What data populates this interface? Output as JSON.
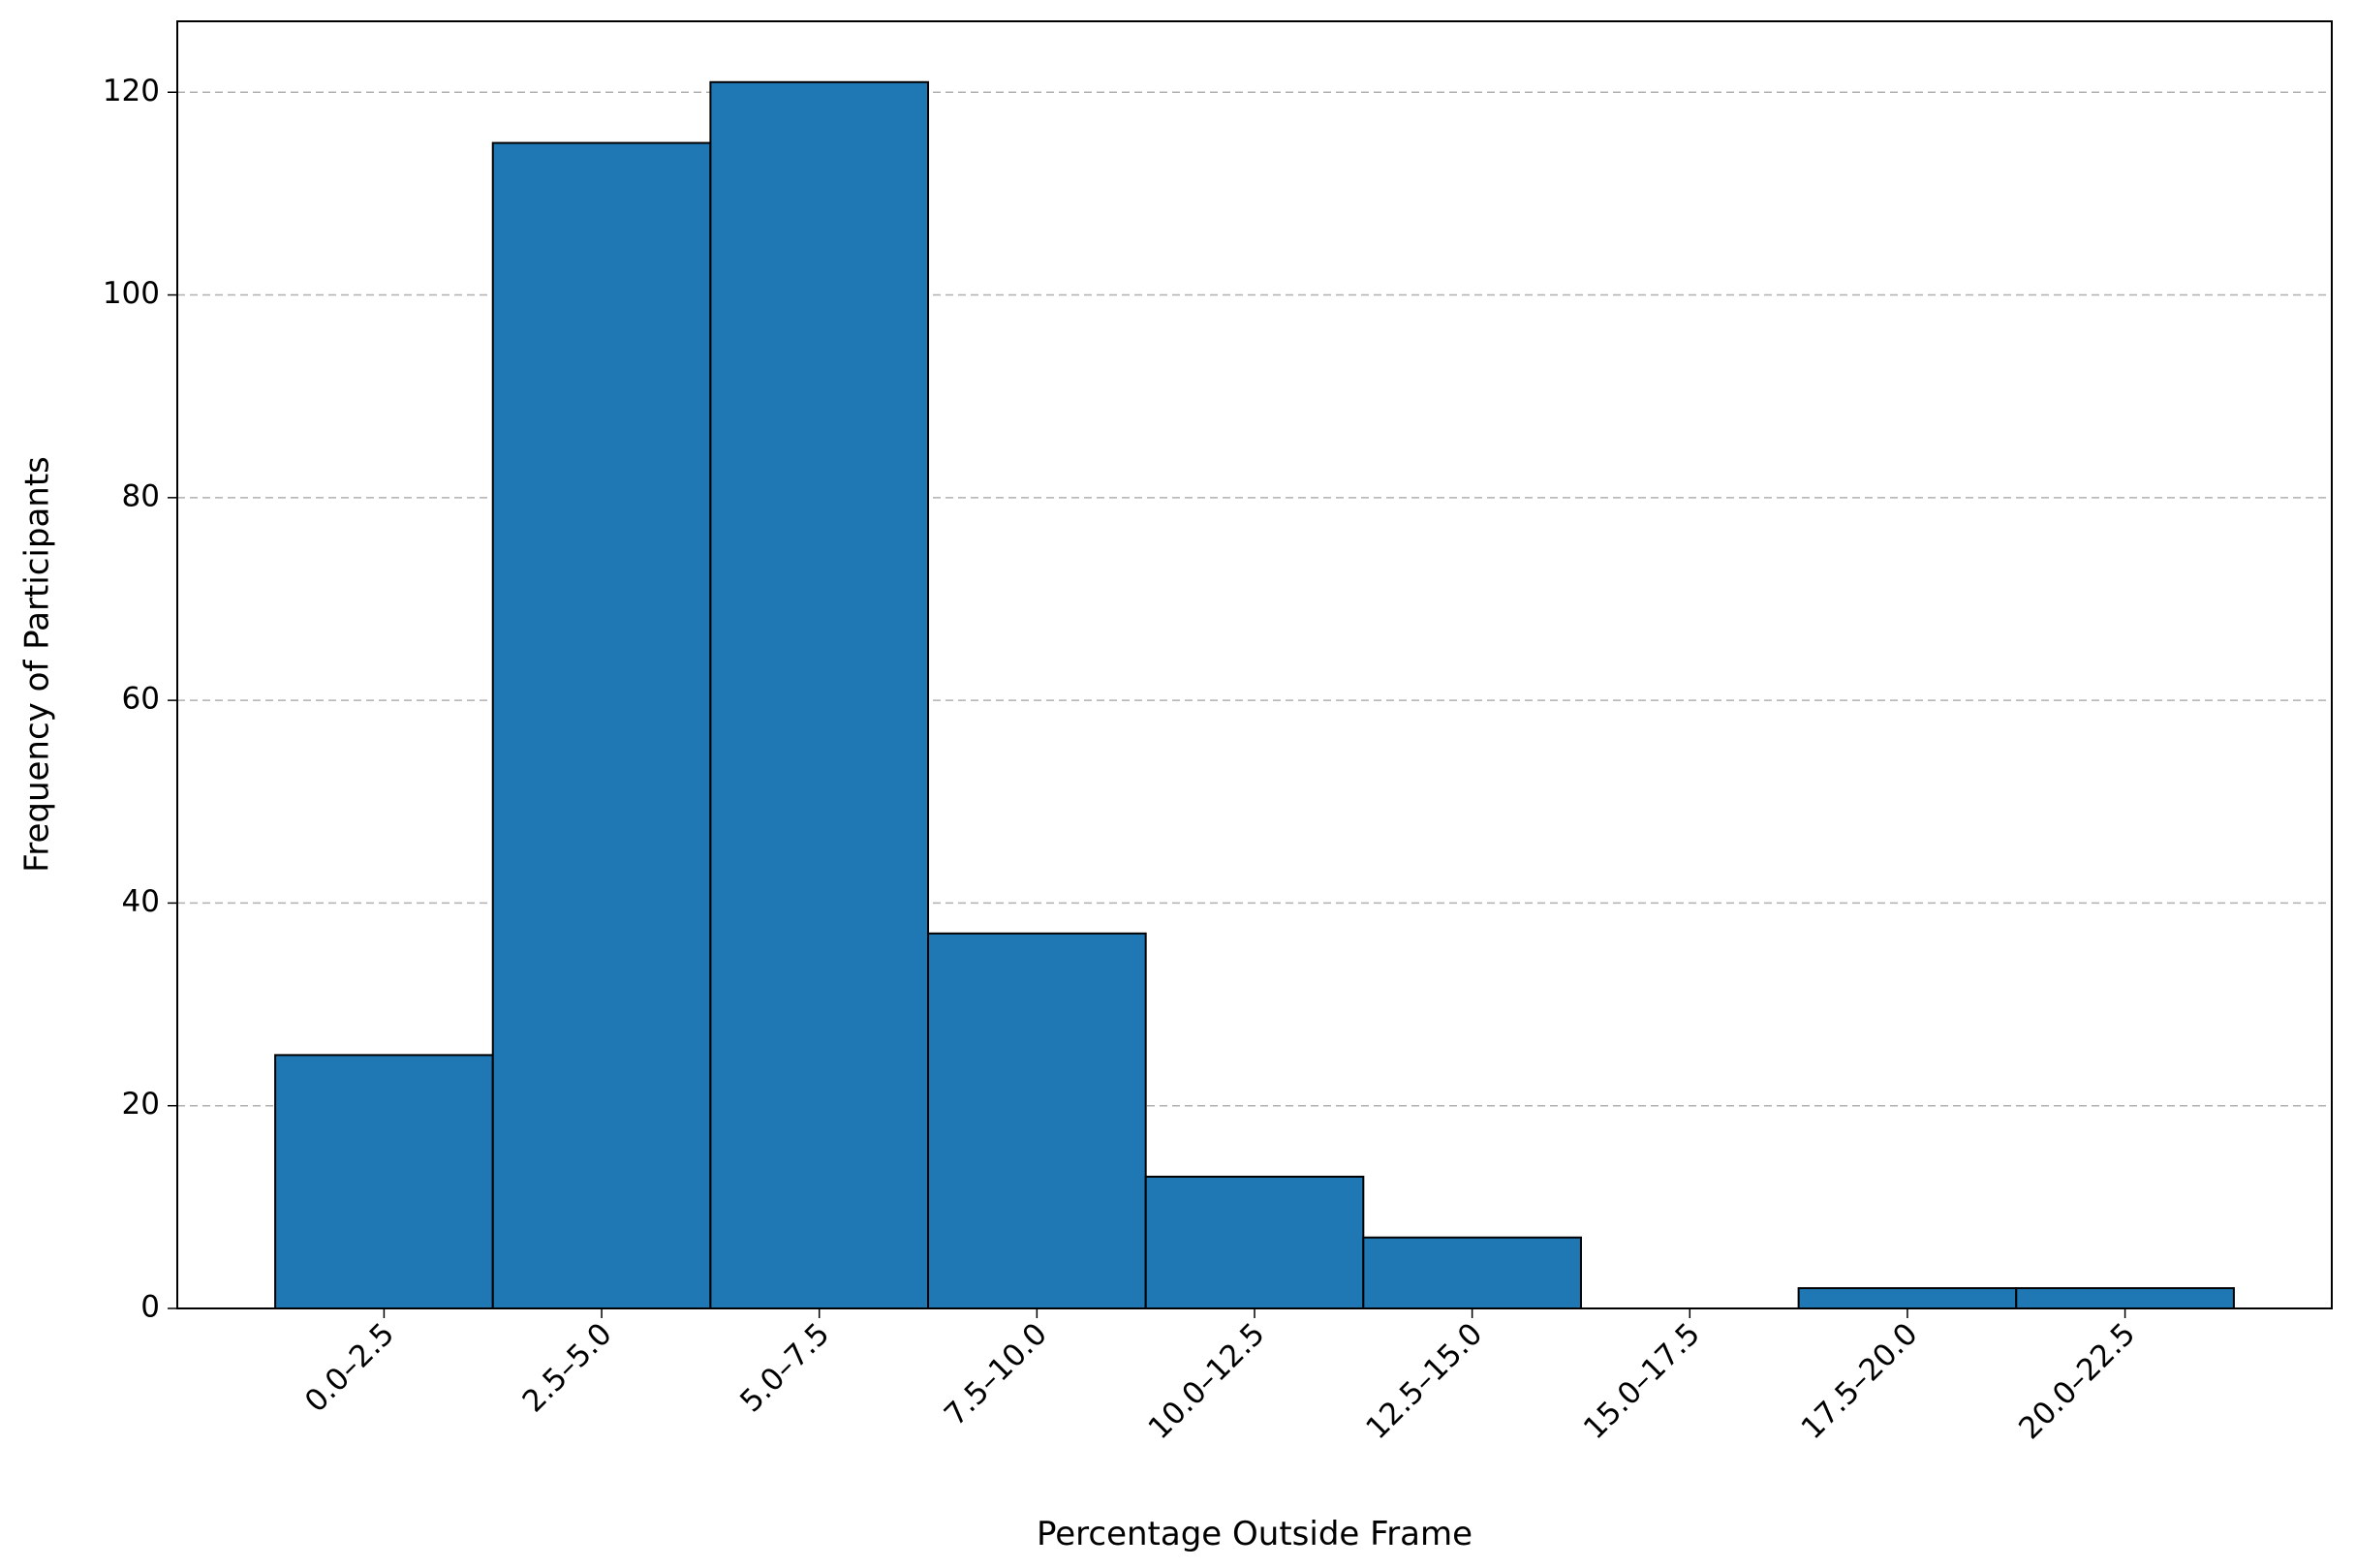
{
  "chart_data": {
    "type": "bar",
    "xlabel": "Percentage Outside Frame",
    "ylabel": "Frequency of Participants",
    "categories": [
      "0.0–2.5",
      "2.5–5.0",
      "5.0–7.5",
      "7.5–10.0",
      "10.0–12.5",
      "12.5–15.0",
      "15.0–17.5",
      "17.5–20.0",
      "20.0–22.5"
    ],
    "values": [
      25,
      115,
      121,
      37,
      13,
      7,
      0,
      2,
      2
    ],
    "color": "#1f77b4",
    "ylim": [
      0,
      127
    ],
    "yticks": [
      0,
      20,
      40,
      60,
      80,
      100,
      120
    ],
    "grid": true
  }
}
